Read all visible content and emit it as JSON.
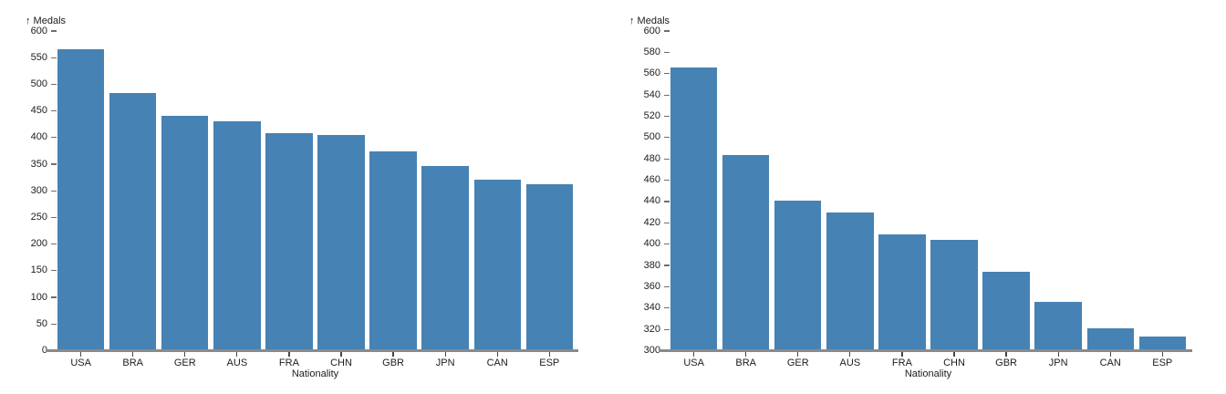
{
  "colors": {
    "background": "#ffffff",
    "bar": "#4682b4",
    "axis_line": "#8a8a8a",
    "y_tick_line": "#6e6e6e",
    "x_tick_line": "#3f464e",
    "text": "#1c1c1c"
  },
  "chart_data": [
    {
      "type": "bar",
      "y_axis_title": "↑ Medals",
      "xlabel": "Nationality",
      "categories": [
        "USA",
        "BRA",
        "GER",
        "AUS",
        "FRA",
        "CHN",
        "GBR",
        "JPN",
        "CAN",
        "ESP"
      ],
      "values": [
        566,
        484,
        441,
        430,
        409,
        404,
        374,
        346,
        321,
        313
      ],
      "ylim": [
        0,
        600
      ],
      "ytick_step": 50,
      "yticks": [
        600,
        550,
        500,
        450,
        400,
        350,
        300,
        250,
        200,
        150,
        100,
        50,
        0
      ],
      "grid": false,
      "legend": false
    },
    {
      "type": "bar",
      "y_axis_title": "↑ Medals",
      "xlabel": "Nationality",
      "categories": [
        "USA",
        "BRA",
        "GER",
        "AUS",
        "FRA",
        "CHN",
        "GBR",
        "JPN",
        "CAN",
        "ESP"
      ],
      "values": [
        566,
        484,
        441,
        430,
        409,
        404,
        374,
        346,
        321,
        313
      ],
      "ylim": [
        300,
        600
      ],
      "ytick_step": 20,
      "yticks": [
        600,
        580,
        560,
        540,
        520,
        500,
        480,
        460,
        440,
        420,
        400,
        380,
        360,
        340,
        320,
        300
      ],
      "grid": false,
      "legend": false
    }
  ]
}
